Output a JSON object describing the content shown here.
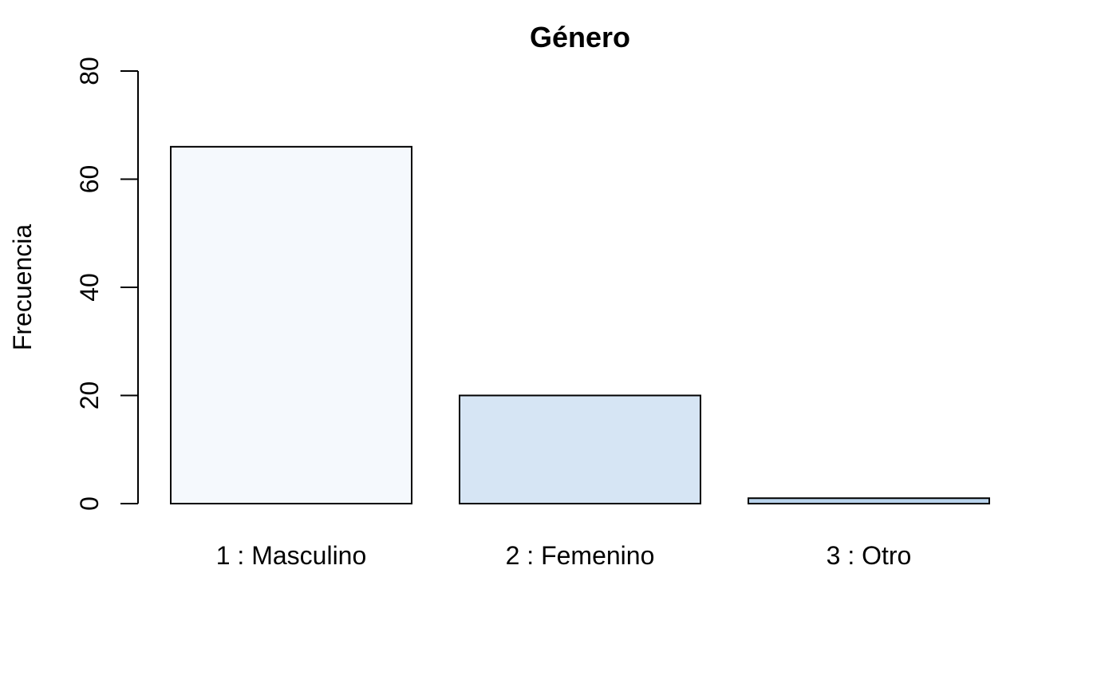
{
  "chart_data": {
    "type": "bar",
    "title": "Género",
    "xlabel": "",
    "ylabel": "Frecuencia",
    "categories": [
      "1 : Masculino",
      "2 : Femenino",
      "3 : Otro"
    ],
    "values": [
      66,
      20,
      1
    ],
    "ylim": [
      0,
      80
    ],
    "yticks": [
      0,
      20,
      40,
      60,
      80
    ],
    "ytick_labels": [
      "0",
      "20",
      "40",
      "60",
      "80"
    ],
    "bar_colors": [
      "#f5f9fd",
      "#d6e5f4",
      "#b9d3ec"
    ],
    "bar_stroke": "#000000",
    "grid": false
  }
}
